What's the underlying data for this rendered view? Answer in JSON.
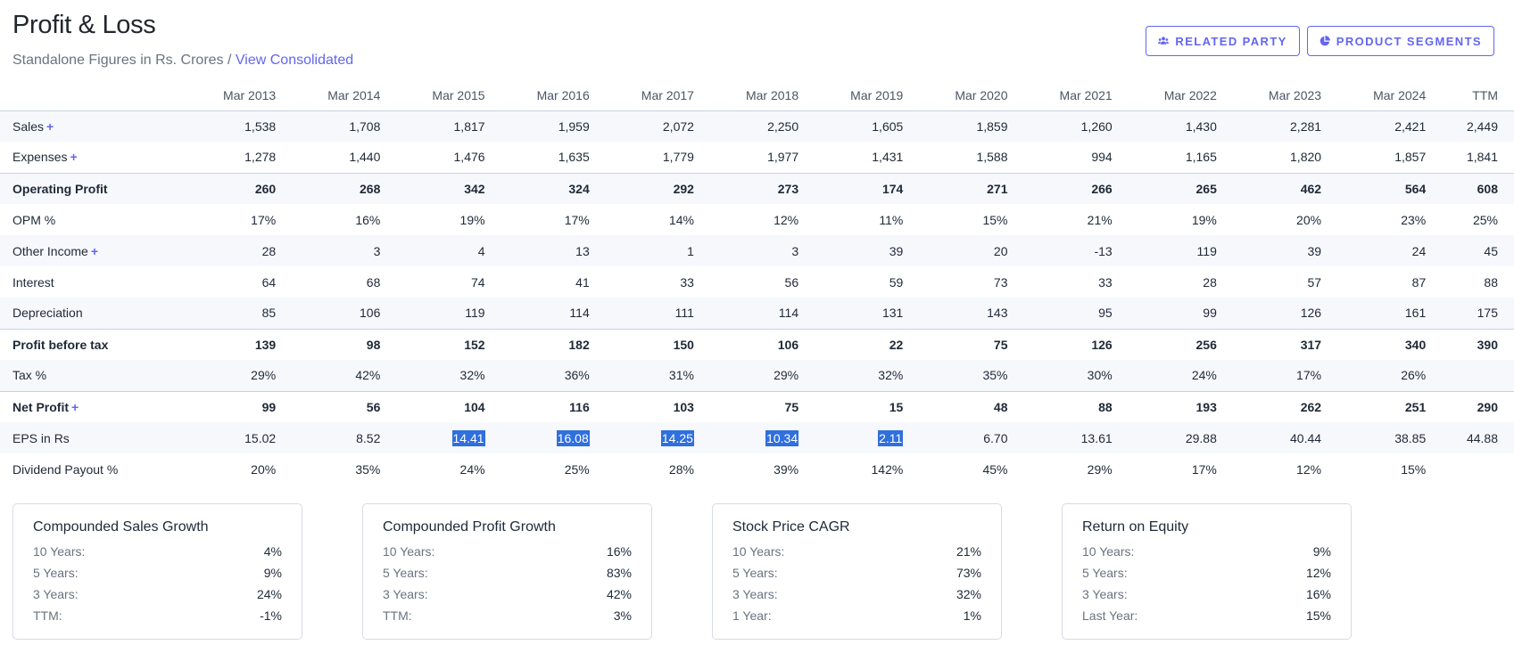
{
  "page": {
    "title": "Profit & Loss",
    "subtitle": "Standalone Figures in Rs. Crores /",
    "consolidated_link": "View Consolidated"
  },
  "buttons": {
    "related_party": "RELATED PARTY",
    "product_segments": "PRODUCT SEGMENTS"
  },
  "icons": {
    "related_party": "users-icon",
    "product_segments": "pie-chart-icon"
  },
  "colors": {
    "accent": "#6366f1",
    "highlight": "#2f6fde"
  },
  "table": {
    "columns": [
      "Mar 2013",
      "Mar 2014",
      "Mar 2015",
      "Mar 2016",
      "Mar 2017",
      "Mar 2018",
      "Mar 2019",
      "Mar 2020",
      "Mar 2021",
      "Mar 2022",
      "Mar 2023",
      "Mar 2024",
      "TTM"
    ],
    "rows": [
      {
        "label": "Sales",
        "expand": "+",
        "values": [
          "1,538",
          "1,708",
          "1,817",
          "1,959",
          "2,072",
          "2,250",
          "1,605",
          "1,859",
          "1,260",
          "1,430",
          "2,281",
          "2,421",
          "2,449"
        ]
      },
      {
        "label": "Expenses",
        "expand": "+",
        "values": [
          "1,278",
          "1,440",
          "1,476",
          "1,635",
          "1,779",
          "1,977",
          "1,431",
          "1,588",
          "994",
          "1,165",
          "1,820",
          "1,857",
          "1,841"
        ]
      },
      {
        "label": "Operating Profit",
        "values": [
          "260",
          "268",
          "342",
          "324",
          "292",
          "273",
          "174",
          "271",
          "266",
          "265",
          "462",
          "564",
          "608"
        ]
      },
      {
        "label": "OPM %",
        "values": [
          "17%",
          "16%",
          "19%",
          "17%",
          "14%",
          "12%",
          "11%",
          "15%",
          "21%",
          "19%",
          "20%",
          "23%",
          "25%"
        ]
      },
      {
        "label": "Other Income",
        "expand": "+",
        "values": [
          "28",
          "3",
          "4",
          "13",
          "1",
          "3",
          "39",
          "20",
          "-13",
          "119",
          "39",
          "24",
          "45"
        ]
      },
      {
        "label": "Interest",
        "values": [
          "64",
          "68",
          "74",
          "41",
          "33",
          "56",
          "59",
          "73",
          "33",
          "28",
          "57",
          "87",
          "88"
        ]
      },
      {
        "label": "Depreciation",
        "values": [
          "85",
          "106",
          "119",
          "114",
          "111",
          "114",
          "131",
          "143",
          "95",
          "99",
          "126",
          "161",
          "175"
        ]
      },
      {
        "label": "Profit before tax",
        "values": [
          "139",
          "98",
          "152",
          "182",
          "150",
          "106",
          "22",
          "75",
          "126",
          "256",
          "317",
          "340",
          "390"
        ]
      },
      {
        "label": "Tax %",
        "values": [
          "29%",
          "42%",
          "32%",
          "36%",
          "31%",
          "29%",
          "32%",
          "35%",
          "30%",
          "24%",
          "17%",
          "26%",
          ""
        ]
      },
      {
        "label": "Net Profit",
        "expand": "+",
        "values": [
          "99",
          "56",
          "104",
          "116",
          "103",
          "75",
          "15",
          "48",
          "88",
          "193",
          "262",
          "251",
          "290"
        ]
      },
      {
        "label": "EPS in Rs",
        "values": [
          "15.02",
          "8.52",
          "14.41",
          "16.08",
          "14.25",
          "10.34",
          "2.11",
          "6.70",
          "13.61",
          "29.88",
          "40.44",
          "38.85",
          "44.88"
        ]
      },
      {
        "label": "Dividend Payout %",
        "values": [
          "20%",
          "35%",
          "24%",
          "25%",
          "28%",
          "39%",
          "142%",
          "45%",
          "29%",
          "17%",
          "12%",
          "15%",
          ""
        ]
      }
    ]
  },
  "cards": [
    {
      "title": "Compounded Sales Growth",
      "rows": [
        {
          "k": "10 Years:",
          "v": "4%"
        },
        {
          "k": "5 Years:",
          "v": "9%"
        },
        {
          "k": "3 Years:",
          "v": "24%"
        },
        {
          "k": "TTM:",
          "v": "-1%"
        }
      ]
    },
    {
      "title": "Compounded Profit Growth",
      "rows": [
        {
          "k": "10 Years:",
          "v": "16%"
        },
        {
          "k": "5 Years:",
          "v": "83%"
        },
        {
          "k": "3 Years:",
          "v": "42%"
        },
        {
          "k": "TTM:",
          "v": "3%"
        }
      ]
    },
    {
      "title": "Stock Price CAGR",
      "rows": [
        {
          "k": "10 Years:",
          "v": "21%"
        },
        {
          "k": "5 Years:",
          "v": "73%"
        },
        {
          "k": "3 Years:",
          "v": "32%"
        },
        {
          "k": "1 Year:",
          "v": "1%"
        }
      ]
    },
    {
      "title": "Return on Equity",
      "rows": [
        {
          "k": "10 Years:",
          "v": "9%"
        },
        {
          "k": "5 Years:",
          "v": "12%"
        },
        {
          "k": "3 Years:",
          "v": "16%"
        },
        {
          "k": "Last Year:",
          "v": "15%"
        }
      ]
    }
  ]
}
